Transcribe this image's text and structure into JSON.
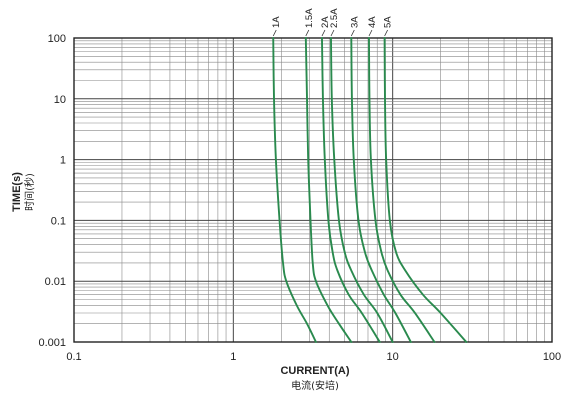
{
  "chart_data": {
    "type": "line",
    "xlabel": "CURRENT(A)",
    "xlabel_sub": "电流(安培)",
    "ylabel": "TIME(s)",
    "ylabel_sub": "时间(秒)",
    "x_scale": "log",
    "y_scale": "log",
    "xlim": [
      0.1,
      100
    ],
    "ylim": [
      0.001,
      100
    ],
    "x_ticks": [
      "0.1",
      "1",
      "10",
      "100"
    ],
    "y_ticks": [
      "100",
      "10",
      "1",
      "0.1",
      "0.01",
      "0.001"
    ],
    "grid": true,
    "curve_color": "#2a8a4e",
    "series": [
      {
        "name": "1A",
        "points": [
          [
            1.78,
            100
          ],
          [
            1.8,
            10
          ],
          [
            1.85,
            1
          ],
          [
            1.95,
            0.1
          ],
          [
            2.05,
            0.02
          ],
          [
            2.15,
            0.01
          ],
          [
            2.5,
            0.004
          ],
          [
            2.9,
            0.002
          ],
          [
            3.3,
            0.001
          ]
        ]
      },
      {
        "name": "1.5A",
        "points": [
          [
            2.85,
            100
          ],
          [
            2.9,
            10
          ],
          [
            2.95,
            1
          ],
          [
            3.05,
            0.1
          ],
          [
            3.15,
            0.02
          ],
          [
            3.3,
            0.01
          ],
          [
            3.9,
            0.004
          ],
          [
            4.6,
            0.002
          ],
          [
            5.5,
            0.001
          ]
        ]
      },
      {
        "name": "2A",
        "points": [
          [
            3.6,
            100
          ],
          [
            3.65,
            10
          ],
          [
            3.75,
            1
          ],
          [
            3.95,
            0.1
          ],
          [
            4.2,
            0.03
          ],
          [
            4.5,
            0.015
          ],
          [
            5.3,
            0.006
          ],
          [
            6.4,
            0.003
          ],
          [
            8.3,
            0.001
          ]
        ]
      },
      {
        "name": "2.5A",
        "points": [
          [
            4.1,
            100
          ],
          [
            4.15,
            10
          ],
          [
            4.3,
            1
          ],
          [
            4.6,
            0.1
          ],
          [
            5.0,
            0.03
          ],
          [
            5.5,
            0.015
          ],
          [
            6.6,
            0.006
          ],
          [
            8.0,
            0.003
          ],
          [
            10.0,
            0.001
          ]
        ]
      },
      {
        "name": "3A",
        "points": [
          [
            5.5,
            100
          ],
          [
            5.55,
            10
          ],
          [
            5.7,
            1
          ],
          [
            6.1,
            0.1
          ],
          [
            6.7,
            0.03
          ],
          [
            7.4,
            0.015
          ],
          [
            8.8,
            0.006
          ],
          [
            10.4,
            0.003
          ],
          [
            13.0,
            0.001
          ]
        ]
      },
      {
        "name": "4A",
        "points": [
          [
            7.1,
            100
          ],
          [
            7.15,
            10
          ],
          [
            7.3,
            1
          ],
          [
            7.8,
            0.1
          ],
          [
            8.5,
            0.03
          ],
          [
            9.3,
            0.015
          ],
          [
            11.2,
            0.006
          ],
          [
            13.8,
            0.003
          ],
          [
            18.3,
            0.001
          ]
        ]
      },
      {
        "name": "5A",
        "points": [
          [
            8.9,
            100
          ],
          [
            8.95,
            10
          ],
          [
            9.1,
            1
          ],
          [
            9.6,
            0.1
          ],
          [
            10.5,
            0.03
          ],
          [
            12.0,
            0.015
          ],
          [
            15.5,
            0.006
          ],
          [
            20.0,
            0.003
          ],
          [
            29.0,
            0.001
          ]
        ]
      }
    ]
  }
}
